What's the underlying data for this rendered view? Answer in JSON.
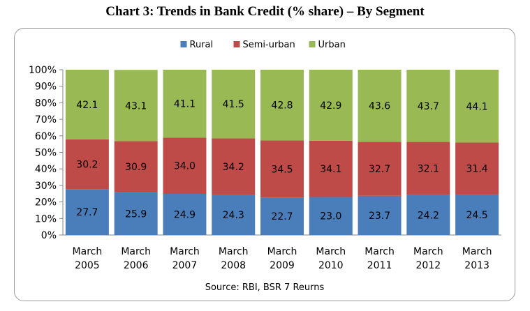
{
  "chart_data": {
    "type": "bar",
    "stacked": true,
    "title": "Chart 3: Trends in Bank Credit (% share) – By Segment",
    "categories": [
      [
        "March",
        "2005"
      ],
      [
        "March",
        "2006"
      ],
      [
        "March",
        "2007"
      ],
      [
        "March",
        "2008"
      ],
      [
        "March",
        "2009"
      ],
      [
        "March",
        "2010"
      ],
      [
        "March",
        "2011"
      ],
      [
        "March",
        "2012"
      ],
      [
        "March",
        "2013"
      ]
    ],
    "series": [
      {
        "name": "Rural",
        "color": "#4a7ebb",
        "values": [
          27.7,
          25.9,
          24.9,
          24.3,
          22.7,
          23.0,
          23.7,
          24.2,
          24.5
        ],
        "labels": [
          "27.7",
          "25.9",
          "24.9",
          "24.3",
          "22.7",
          "23.0",
          "23.7",
          "24.2",
          "24.5"
        ]
      },
      {
        "name": "Semi-urban",
        "color": "#be4b48",
        "values": [
          30.2,
          30.9,
          34.0,
          34.2,
          34.5,
          34.1,
          32.7,
          32.1,
          31.4
        ],
        "labels": [
          "30.2",
          "30.9",
          "34.0",
          "34.2",
          "34.5",
          "34.1",
          "32.7",
          "32.1",
          "31.4"
        ]
      },
      {
        "name": "Urban",
        "color": "#98b954",
        "values": [
          42.1,
          43.1,
          41.1,
          41.5,
          42.8,
          42.9,
          43.6,
          43.7,
          44.1
        ],
        "labels": [
          "42.1",
          "43.1",
          "41.1",
          "41.5",
          "42.8",
          "42.9",
          "43.6",
          "43.7",
          "44.1"
        ]
      }
    ],
    "y_ticks": [
      "0%",
      "10%",
      "20%",
      "30%",
      "40%",
      "50%",
      "60%",
      "70%",
      "80%",
      "90%",
      "100%"
    ],
    "ylim": [
      0,
      100
    ],
    "legend_position": "top-center",
    "grid": false,
    "source": "Source: RBI, BSR 7 Reurns"
  }
}
